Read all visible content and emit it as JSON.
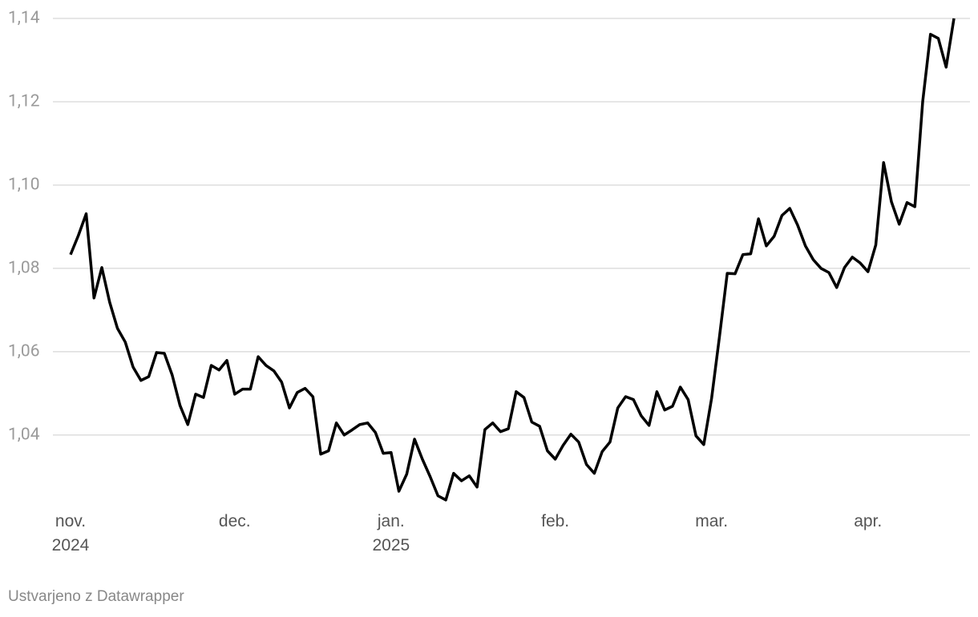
{
  "chart_data": {
    "type": "line",
    "categories": [
      "nov.\n2024",
      null,
      null,
      null,
      null,
      null,
      null,
      null,
      null,
      null,
      null,
      null,
      null,
      null,
      null,
      null,
      null,
      null,
      null,
      null,
      null,
      "dec.",
      null,
      null,
      null,
      null,
      null,
      null,
      null,
      null,
      null,
      null,
      null,
      null,
      null,
      null,
      null,
      null,
      null,
      null,
      null,
      "jan.\n2025",
      null,
      null,
      null,
      null,
      null,
      null,
      null,
      null,
      null,
      null,
      null,
      null,
      null,
      null,
      null,
      null,
      null,
      null,
      null,
      null,
      "feb.",
      null,
      null,
      null,
      null,
      null,
      null,
      null,
      null,
      null,
      null,
      null,
      null,
      null,
      null,
      null,
      null,
      null,
      null,
      null,
      "mar.",
      null,
      null,
      null,
      null,
      null,
      null,
      null,
      null,
      null,
      null,
      null,
      null,
      null,
      null,
      null,
      null,
      null,
      null,
      null,
      "apr.",
      null,
      null,
      null,
      null,
      null,
      null,
      null,
      null,
      null,
      null,
      null
    ],
    "series": [
      {
        "name": null,
        "color": "#000000",
        "values": [
          1.0833,
          1.0879,
          1.0931,
          1.0729,
          1.0802,
          1.0719,
          1.0656,
          1.0623,
          1.0563,
          1.0531,
          1.054,
          1.0598,
          1.0596,
          1.0544,
          1.0471,
          1.0425,
          1.0498,
          1.049,
          1.0567,
          1.0556,
          1.0579,
          1.0498,
          1.051,
          1.051,
          1.0588,
          1.0567,
          1.0554,
          1.0527,
          1.0465,
          1.0502,
          1.0512,
          1.0492,
          1.0354,
          1.0362,
          1.0429,
          1.04,
          1.0412,
          1.0425,
          1.0429,
          1.0406,
          1.0356,
          1.0358,
          1.0265,
          1.0306,
          1.039,
          1.0342,
          1.03,
          1.0254,
          1.0244,
          1.0308,
          1.029,
          1.0302,
          1.0275,
          1.0413,
          1.0429,
          1.0408,
          1.0415,
          1.0504,
          1.049,
          1.0431,
          1.0421,
          1.0362,
          1.0342,
          1.0375,
          1.0402,
          1.0383,
          1.0329,
          1.0308,
          1.036,
          1.0383,
          1.0465,
          1.0492,
          1.0485,
          1.0446,
          1.0423,
          1.0504,
          1.046,
          1.0469,
          1.0515,
          1.0485,
          1.0398,
          1.0377,
          1.0488,
          1.0635,
          1.0788,
          1.0787,
          1.0833,
          1.0835,
          1.0919,
          1.0854,
          1.0877,
          1.0927,
          1.0944,
          1.0904,
          1.0854,
          1.0821,
          1.08,
          1.079,
          1.0754,
          1.0802,
          1.0827,
          1.0813,
          1.0792,
          1.0856,
          1.1054,
          1.096,
          1.0906,
          1.0958,
          1.0948,
          1.12,
          1.1362,
          1.1352,
          1.1283,
          1.14
        ]
      }
    ],
    "ylim": [
      1.0242,
      1.14
    ],
    "yticks": [
      {
        "value": 1.04,
        "label": "1,04"
      },
      {
        "value": 1.06,
        "label": "1,06"
      },
      {
        "value": 1.08,
        "label": "1,08"
      },
      {
        "value": 1.1,
        "label": "1,10"
      },
      {
        "value": 1.12,
        "label": "1,12"
      },
      {
        "value": 1.14,
        "label": "1,14"
      }
    ],
    "grid": true
  },
  "footer": "Ustvarjeno z Datawrapper"
}
